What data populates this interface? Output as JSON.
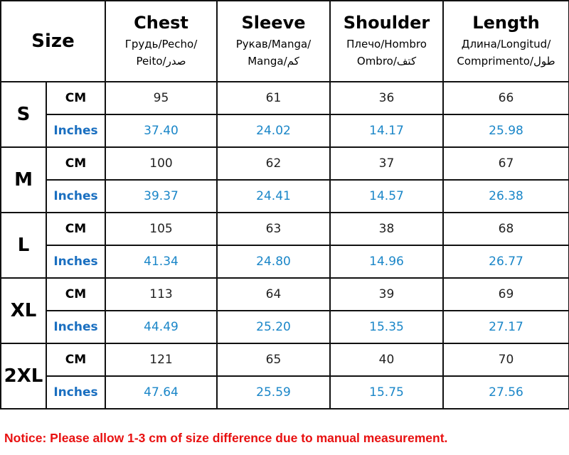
{
  "table": {
    "size_header": "Size",
    "columns": [
      {
        "title": "Chest",
        "lines": [
          "Грудь/Pecho/",
          "Peito/صدر"
        ]
      },
      {
        "title": "Sleeve",
        "lines": [
          "Рукав/Manga/",
          "Manga/كم"
        ]
      },
      {
        "title": "Shoulder",
        "lines": [
          "Плечо/Hombro",
          "Ombro/كتف"
        ]
      },
      {
        "title": "Length",
        "lines": [
          "Длина/Longitud/",
          "Comprimento/طول"
        ]
      }
    ],
    "units": [
      "CM",
      "Inches"
    ],
    "rows": [
      {
        "size": "S",
        "cm": [
          "95",
          "61",
          "36",
          "66"
        ],
        "inches": [
          "37.40",
          "24.02",
          "14.17",
          "25.98"
        ]
      },
      {
        "size": "M",
        "cm": [
          "100",
          "62",
          "37",
          "67"
        ],
        "inches": [
          "39.37",
          "24.41",
          "14.57",
          "26.38"
        ]
      },
      {
        "size": "L",
        "cm": [
          "105",
          "63",
          "38",
          "68"
        ],
        "inches": [
          "41.34",
          "24.80",
          "14.96",
          "26.77"
        ]
      },
      {
        "size": "XL",
        "cm": [
          "113",
          "64",
          "39",
          "69"
        ],
        "inches": [
          "44.49",
          "25.20",
          "15.35",
          "27.17"
        ]
      },
      {
        "size": "2XL",
        "cm": [
          "121",
          "65",
          "40",
          "70"
        ],
        "inches": [
          "47.64",
          "25.59",
          "15.75",
          "27.56"
        ]
      }
    ]
  },
  "notice": "Notice: Please allow 1-3 cm of size difference due to manual measurement."
}
